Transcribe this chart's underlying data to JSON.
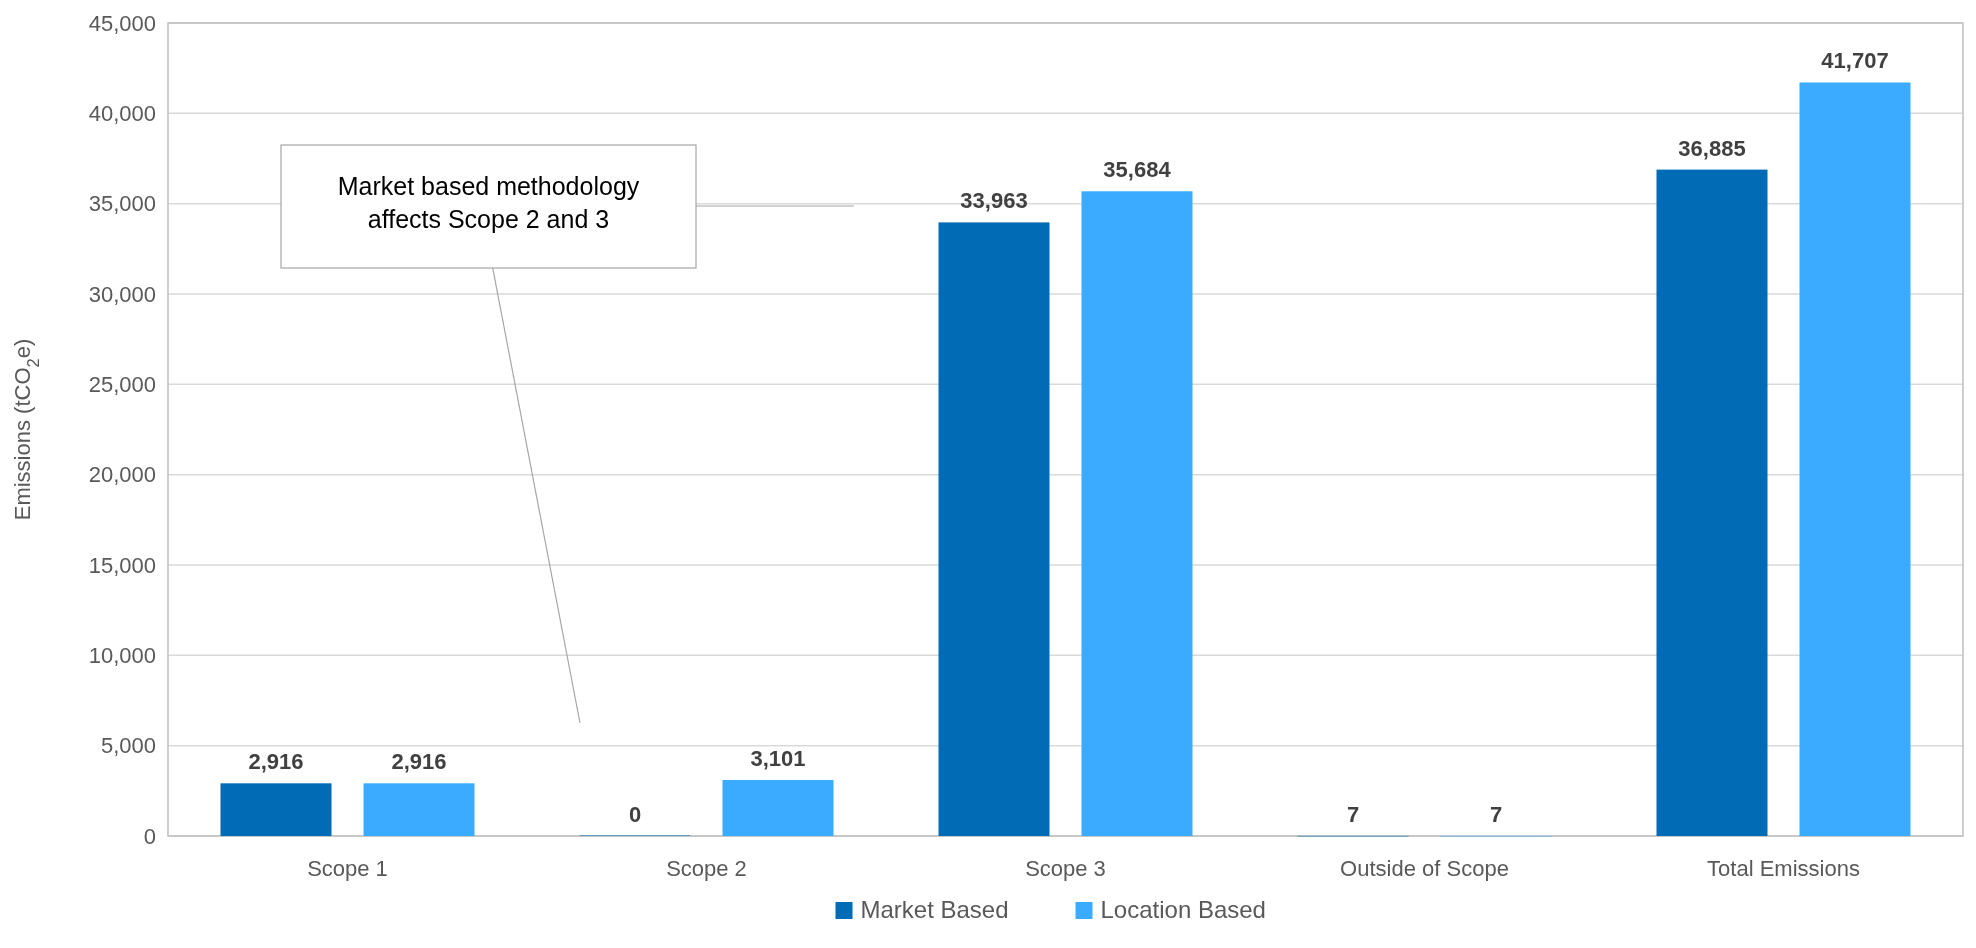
{
  "chart_data": {
    "type": "bar",
    "ylabel": "Emissions (tCO$_{2}$e)",
    "categories": [
      "Scope 1",
      "Scope 2",
      "Scope 3",
      "Outside of Scope",
      "Total Emissions"
    ],
    "series": [
      {
        "name": "Market Based",
        "color": "#016bb5",
        "values": [
          2916,
          0,
          33963,
          7,
          36885
        ],
        "value_labels": [
          "2,916",
          "0",
          "33,963",
          "7",
          "36,885"
        ]
      },
      {
        "name": "Location Based",
        "color": "#3aabff",
        "values": [
          2916,
          3101,
          35684,
          7,
          41707
        ],
        "value_labels": [
          "2,916",
          "3,101",
          "35,684",
          "7",
          "41,707"
        ]
      }
    ],
    "ylim": [
      0,
      45000
    ],
    "yticks": [
      0,
      {
        "value": 5000,
        "label": "5,000"
      },
      {
        "value": 10000,
        "label": "10,000"
      },
      {
        "value": 15000,
        "label": "15,000"
      },
      {
        "value": 20000,
        "label": "20,000"
      },
      {
        "value": 25000,
        "label": "25,000"
      },
      {
        "value": 30000,
        "label": "30,000"
      },
      {
        "value": 35000,
        "label": "35,000"
      },
      {
        "value": 40000,
        "label": "40,000"
      },
      {
        "value": 45000,
        "label": "45,000"
      }
    ],
    "grid": "y",
    "legend": "bottom",
    "annotations": [
      "Market based methodology affects Scope 2 and 3"
    ]
  }
}
